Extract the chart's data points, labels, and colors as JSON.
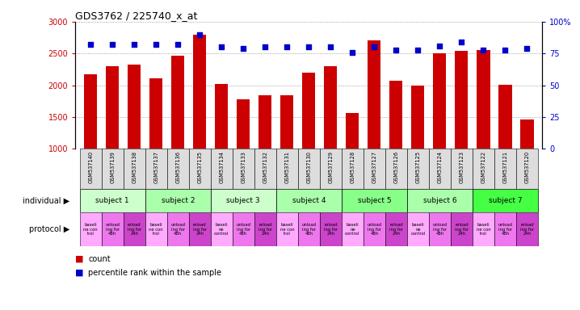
{
  "title": "GDS3762 / 225740_x_at",
  "samples": [
    "GSM537140",
    "GSM537139",
    "GSM537138",
    "GSM537137",
    "GSM537136",
    "GSM537135",
    "GSM537134",
    "GSM537133",
    "GSM537132",
    "GSM537131",
    "GSM537130",
    "GSM537129",
    "GSM537128",
    "GSM537127",
    "GSM537126",
    "GSM537125",
    "GSM537124",
    "GSM537123",
    "GSM537122",
    "GSM537121",
    "GSM537120"
  ],
  "counts": [
    2175,
    2305,
    2320,
    2105,
    2460,
    2800,
    2025,
    1775,
    1840,
    1840,
    2195,
    2300,
    1560,
    2700,
    2065,
    1990,
    2500,
    2545,
    2555,
    2005,
    1460
  ],
  "percentile_ranks": [
    82,
    82,
    82,
    82,
    82,
    90,
    80,
    79,
    80,
    80,
    80,
    80,
    76,
    80,
    78,
    78,
    81,
    84,
    78,
    78,
    79
  ],
  "bar_color": "#cc0000",
  "dot_color": "#0000cc",
  "ylim_left": [
    1000,
    3000
  ],
  "ylim_right": [
    0,
    100
  ],
  "yticks_left": [
    1000,
    1500,
    2000,
    2500,
    3000
  ],
  "yticks_right": [
    0,
    25,
    50,
    75,
    100
  ],
  "subjects": [
    {
      "label": "subject 1",
      "start": 0,
      "end": 3,
      "color": "#ccffcc"
    },
    {
      "label": "subject 2",
      "start": 3,
      "end": 6,
      "color": "#aaffaa"
    },
    {
      "label": "subject 3",
      "start": 6,
      "end": 9,
      "color": "#ccffcc"
    },
    {
      "label": "subject 4",
      "start": 9,
      "end": 12,
      "color": "#aaffaa"
    },
    {
      "label": "subject 5",
      "start": 12,
      "end": 15,
      "color": "#88ff88"
    },
    {
      "label": "subject 6",
      "start": 15,
      "end": 18,
      "color": "#aaffaa"
    },
    {
      "label": "subject 7",
      "start": 18,
      "end": 21,
      "color": "#44ff44"
    }
  ],
  "protocols": [
    {
      "label": "baseli\nne con\ntrol",
      "color": "#ffaaff"
    },
    {
      "label": "unload\ning for\n48h",
      "color": "#ee77ee"
    },
    {
      "label": "reload\ning for\n24h",
      "color": "#cc44cc"
    },
    {
      "label": "baseli\nne con\ntrol",
      "color": "#ffaaff"
    },
    {
      "label": "unload\ning for\n48h",
      "color": "#ee77ee"
    },
    {
      "label": "reload\ning for\n24h",
      "color": "#cc44cc"
    },
    {
      "label": "baseli\nne\ncontrol",
      "color": "#ffaaff"
    },
    {
      "label": "unload\ning for\n48h",
      "color": "#ee77ee"
    },
    {
      "label": "reload\ning for\n24h",
      "color": "#cc44cc"
    },
    {
      "label": "baseli\nne con\ntrol",
      "color": "#ffaaff"
    },
    {
      "label": "unload\ning for\n48h",
      "color": "#ee77ee"
    },
    {
      "label": "reload\ning for\n24h",
      "color": "#cc44cc"
    },
    {
      "label": "baseli\nne\ncontrol",
      "color": "#ffaaff"
    },
    {
      "label": "unload\ning for\n48h",
      "color": "#ee77ee"
    },
    {
      "label": "reload\ning for\n24h",
      "color": "#cc44cc"
    },
    {
      "label": "baseli\nne\ncontrol",
      "color": "#ffaaff"
    },
    {
      "label": "unload\ning for\n48h",
      "color": "#ee77ee"
    },
    {
      "label": "reload\ning for\n24h",
      "color": "#cc44cc"
    },
    {
      "label": "baseli\nne con\ntrol",
      "color": "#ffaaff"
    },
    {
      "label": "unload\ning for\n48h",
      "color": "#ee77ee"
    },
    {
      "label": "reload\ning for\n24h",
      "color": "#cc44cc"
    }
  ],
  "individual_label": "individual",
  "protocol_label": "protocol",
  "legend_count_label": "count",
  "legend_percentile_label": "percentile rank within the sample",
  "bg_color": "#ffffff",
  "grid_color": "#888888",
  "tick_label_color_left": "#cc0000",
  "tick_label_color_right": "#0000cc",
  "sample_row_color": "#dddddd"
}
